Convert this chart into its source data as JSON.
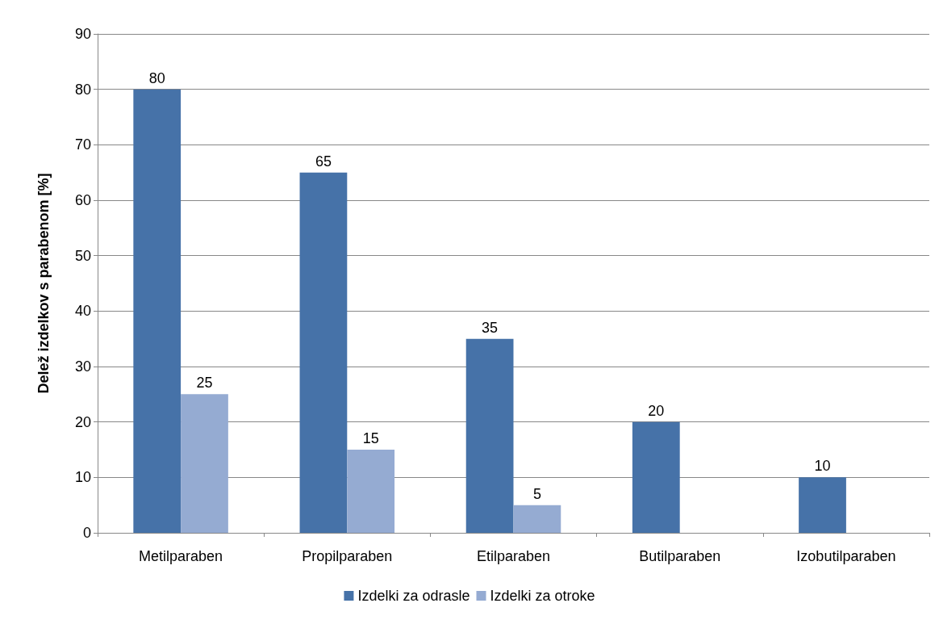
{
  "chart_data": {
    "type": "bar",
    "ylabel": "Delež izdelkov s parabenom [%]",
    "categories": [
      "Metilparaben",
      "Propilparaben",
      "Etilparaben",
      "Butilparaben",
      "Izobutilparaben"
    ],
    "series": [
      {
        "name": "Izdelki za odrasle",
        "color": "#4672a8",
        "values": [
          80,
          65,
          35,
          20,
          10
        ]
      },
      {
        "name": "Izdelki za otroke",
        "color": "#95abd2",
        "values": [
          25,
          15,
          5,
          null,
          null
        ]
      }
    ],
    "ylim": [
      0,
      90
    ],
    "yticks": [
      0,
      10,
      20,
      30,
      40,
      50,
      60,
      70,
      80,
      90
    ],
    "grid": "y",
    "legend": "bottom",
    "data_labels": true
  }
}
